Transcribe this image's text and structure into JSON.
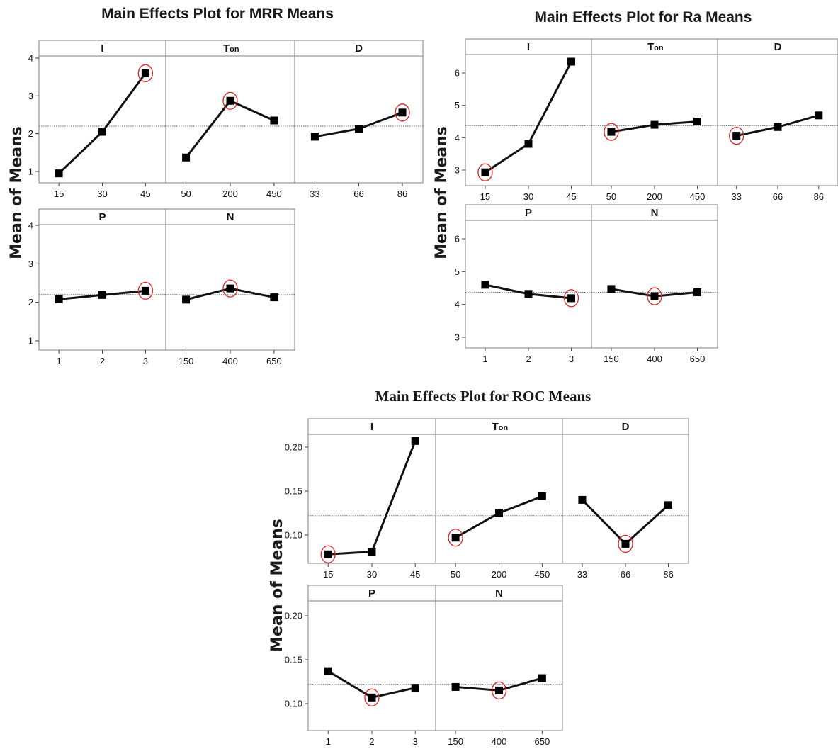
{
  "chart_data": [
    {
      "type": "line",
      "title": "Main Effects Plot for MRR Means",
      "ylabel": "Mean of Means",
      "ylim": [
        0.8,
        4.2
      ],
      "yticks": [
        "1",
        "2",
        "3",
        "4"
      ],
      "ref_mean": 2.2,
      "panels": [
        {
          "factor": "I",
          "categories": [
            "15",
            "30",
            "45"
          ],
          "values": [
            0.95,
            2.05,
            3.6
          ],
          "highlight": 2
        },
        {
          "factor": "Ton",
          "categories": [
            "50",
            "200",
            "450"
          ],
          "values": [
            1.37,
            2.87,
            2.35
          ],
          "highlight": 1
        },
        {
          "factor": "D",
          "categories": [
            "33",
            "66",
            "86"
          ],
          "values": [
            1.92,
            2.13,
            2.56
          ],
          "highlight": 2
        },
        {
          "factor": "P",
          "categories": [
            "1",
            "2",
            "3"
          ],
          "values": [
            2.08,
            2.19,
            2.3
          ],
          "highlight": 2
        },
        {
          "factor": "N",
          "categories": [
            "150",
            "400",
            "650"
          ],
          "values": [
            2.07,
            2.36,
            2.13
          ],
          "highlight": 1
        }
      ]
    },
    {
      "type": "line",
      "title": "Main Effects Plot for Ra  Means",
      "ylabel": "Mean of Means",
      "ylim": [
        2.7,
        6.55
      ],
      "yticks": [
        "3",
        "4",
        "5",
        "6"
      ],
      "ref_mean": 4.37,
      "panels": [
        {
          "factor": "I",
          "categories": [
            "15",
            "30",
            "45"
          ],
          "values": [
            2.93,
            3.81,
            6.35
          ],
          "highlight": 0
        },
        {
          "factor": "Ton",
          "categories": [
            "50",
            "200",
            "450"
          ],
          "values": [
            4.18,
            4.4,
            4.5
          ],
          "highlight": 0
        },
        {
          "factor": "D",
          "categories": [
            "33",
            "66",
            "86"
          ],
          "values": [
            4.06,
            4.33,
            4.69
          ],
          "highlight": 0
        },
        {
          "factor": "P",
          "categories": [
            "1",
            "2",
            "3"
          ],
          "values": [
            4.6,
            4.32,
            4.19
          ],
          "highlight": 2
        },
        {
          "factor": "N",
          "categories": [
            "150",
            "400",
            "650"
          ],
          "values": [
            4.47,
            4.25,
            4.37
          ],
          "highlight": 1
        }
      ]
    },
    {
      "type": "line",
      "title": "Main Effects Plot for ROC Means",
      "ylabel": "Mean of Means",
      "ylim": [
        0.068,
        0.212
      ],
      "yticks": [
        "0.10",
        "0.15",
        "0.20"
      ],
      "ref_mean": 0.122,
      "panels": [
        {
          "factor": "I",
          "categories": [
            "15",
            "30",
            "45"
          ],
          "values": [
            0.078,
            0.081,
            0.207
          ],
          "highlight": 0
        },
        {
          "factor": "Ton",
          "categories": [
            "50",
            "200",
            "450"
          ],
          "values": [
            0.097,
            0.125,
            0.144
          ],
          "highlight": 0
        },
        {
          "factor": "D",
          "categories": [
            "33",
            "66",
            "86"
          ],
          "values": [
            0.14,
            0.09,
            0.134
          ],
          "highlight": 1
        },
        {
          "factor": "P",
          "categories": [
            "1",
            "2",
            "3"
          ],
          "values": [
            0.137,
            0.107,
            0.118
          ],
          "highlight": 1
        },
        {
          "factor": "N",
          "categories": [
            "150",
            "400",
            "650"
          ],
          "values": [
            0.119,
            0.115,
            0.129
          ],
          "highlight": 1
        }
      ]
    }
  ]
}
